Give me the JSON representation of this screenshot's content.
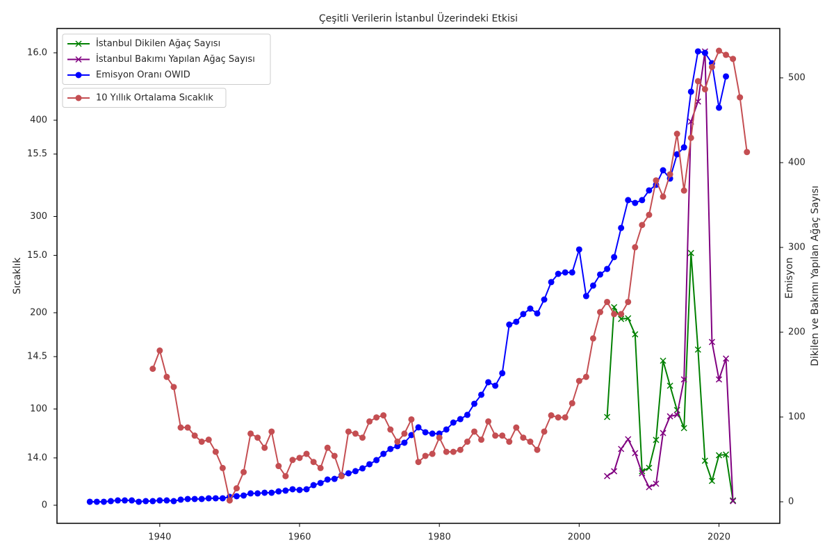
{
  "chart_data": {
    "type": "line",
    "title": "Çeşitli Verilerin İstanbul Üzerindeki Etkisi",
    "ylabel": "Sıcaklık",
    "y2label": "Emisyon",
    "y3label": "Dikilen ve Bakımı Yapılan Ağaç Sayısı",
    "xlim": [
      1925.3,
      2028.7
    ],
    "xticks": [
      1940,
      1960,
      1980,
      2000,
      2020
    ],
    "ylim": [
      13.677,
      16.12
    ],
    "yticks": [
      {
        "value": 14.0,
        "label": "14.0"
      },
      14.5,
      {
        "value": 15.0,
        "label": "15.0"
      },
      15.5,
      {
        "value": 16.0,
        "label": "16.0"
      }
    ],
    "y2lim": [
      -18.8,
      495.3
    ],
    "y2ticks": [
      0,
      100,
      200,
      300,
      400
    ],
    "y3lim": [
      -25.4,
      558.2
    ],
    "y3ticks": [
      0,
      100,
      200,
      300,
      400,
      500
    ],
    "grid": false,
    "series": [
      {
        "name": "İstanbul Dikilen Ağaç Sayısı",
        "color": "#008000",
        "marker": "x",
        "axis": "y3",
        "x": [
          2004,
          2005,
          2006,
          2007,
          2008,
          2009,
          2010,
          2011,
          2012,
          2013,
          2014,
          2015,
          2016,
          2017,
          2018,
          2019,
          2020,
          2021,
          2022
        ],
        "values": [
          100,
          229.5,
          215.6,
          216.4,
          197.5,
          36,
          40,
          73,
          166.4,
          136.9,
          108.2,
          86.9,
          293.4,
          179.5,
          48.4,
          24.6,
          54.9,
          55.7,
          1.6
        ]
      },
      {
        "name": "İstanbul Bakımı Yapılan Ağaç Sayısı",
        "color": "#800080",
        "marker": "x",
        "axis": "y3",
        "x": [
          2004,
          2005,
          2006,
          2007,
          2008,
          2009,
          2010,
          2011,
          2012,
          2013,
          2014,
          2015,
          2016,
          2017,
          2018,
          2019,
          2020,
          2021,
          2022
        ],
        "values": [
          30.3,
          36,
          62.3,
          73.8,
          57.4,
          33.6,
          17.2,
          21.3,
          81.1,
          100.8,
          102.5,
          144.3,
          448.4,
          472.1,
          531.1,
          188.5,
          144.3,
          168.9,
          0.8
        ]
      },
      {
        "name": "Emisyon Oranı OWID",
        "color": "#0000ff",
        "marker": "o",
        "axis": "y2",
        "x": [
          1930,
          1931,
          1932,
          1933,
          1934,
          1935,
          1936,
          1937,
          1938,
          1939,
          1940,
          1941,
          1942,
          1943,
          1944,
          1945,
          1946,
          1947,
          1948,
          1949,
          1950,
          1951,
          1952,
          1953,
          1954,
          1955,
          1956,
          1957,
          1958,
          1959,
          1960,
          1961,
          1962,
          1963,
          1964,
          1965,
          1966,
          1967,
          1968,
          1969,
          1970,
          1971,
          1972,
          1973,
          1974,
          1975,
          1976,
          1977,
          1978,
          1979,
          1980,
          1981,
          1982,
          1983,
          1984,
          1985,
          1986,
          1987,
          1988,
          1989,
          1990,
          1991,
          1992,
          1993,
          1994,
          1995,
          1996,
          1997,
          1998,
          1999,
          2000,
          2001,
          2002,
          2003,
          2004,
          2005,
          2006,
          2007,
          2008,
          2009,
          2010,
          2011,
          2012,
          2013,
          2014,
          2015,
          2016,
          2017,
          2018,
          2019,
          2020,
          2021
        ],
        "values": [
          3.6,
          3.6,
          3.6,
          4.3,
          5.0,
          5.0,
          5.0,
          3.6,
          4.3,
          4.3,
          5.0,
          5.0,
          4.3,
          5.8,
          6.5,
          6.5,
          6.5,
          7.2,
          7.2,
          7.2,
          8.7,
          9.4,
          10.1,
          12.3,
          12.3,
          13.0,
          13.0,
          14.4,
          15.2,
          16.6,
          15.9,
          16.6,
          20.9,
          23.1,
          26.7,
          27.4,
          31.0,
          33.2,
          35.4,
          38.3,
          42.6,
          46.9,
          53.4,
          58.5,
          61.4,
          65.0,
          72.9,
          80.9,
          75.8,
          74.4,
          74.4,
          78.7,
          85.9,
          89.5,
          93.9,
          105.4,
          114.8,
          127.8,
          124.2,
          137.2,
          187.7,
          190.6,
          198.6,
          204.3,
          199.3,
          213.7,
          231.8,
          240.4,
          241.9,
          241.9,
          265.7,
          217.3,
          228.2,
          239.7,
          245.5,
          257.8,
          288.1,
          317.0,
          314.1,
          317.0,
          327.1,
          332.9,
          348.0,
          339.4,
          364.6,
          371.8,
          429.6,
          471.5,
          470.0,
          459.2,
          413.0,
          445.5
        ]
      },
      {
        "name": "10 Yıllık Ortalama Sıcaklık",
        "color": "#c44e52",
        "marker": "o",
        "axis": "y",
        "x": [
          1939,
          1940,
          1941,
          1942,
          1943,
          1944,
          1945,
          1946,
          1947,
          1948,
          1949,
          1950,
          1951,
          1952,
          1953,
          1954,
          1955,
          1956,
          1957,
          1958,
          1959,
          1960,
          1961,
          1962,
          1963,
          1964,
          1965,
          1966,
          1967,
          1968,
          1969,
          1970,
          1971,
          1972,
          1973,
          1974,
          1975,
          1976,
          1977,
          1978,
          1979,
          1980,
          1981,
          1982,
          1983,
          1984,
          1985,
          1986,
          1987,
          1988,
          1989,
          1990,
          1991,
          1992,
          1993,
          1994,
          1995,
          1996,
          1997,
          1998,
          1999,
          2000,
          2001,
          2002,
          2003,
          2004,
          2005,
          2006,
          2007,
          2008,
          2009,
          2010,
          2011,
          2012,
          2013,
          2014,
          2015,
          2016,
          2017,
          2018,
          2019,
          2020,
          2021,
          2022,
          2023,
          2024
        ],
        "values": [
          14.44,
          14.53,
          14.4,
          14.35,
          14.15,
          14.15,
          14.11,
          14.08,
          14.09,
          14.03,
          13.95,
          13.79,
          13.85,
          13.93,
          14.12,
          14.1,
          14.05,
          14.13,
          13.96,
          13.91,
          13.99,
          14.0,
          14.02,
          13.98,
          13.95,
          14.05,
          14.01,
          13.91,
          14.13,
          14.12,
          14.1,
          14.18,
          14.2,
          14.21,
          14.14,
          14.08,
          14.12,
          14.19,
          13.98,
          14.01,
          14.02,
          14.1,
          14.03,
          14.03,
          14.04,
          14.08,
          14.13,
          14.09,
          14.18,
          14.11,
          14.11,
          14.08,
          14.15,
          14.1,
          14.08,
          14.04,
          14.13,
          14.21,
          14.2,
          14.2,
          14.27,
          14.38,
          14.4,
          14.59,
          14.72,
          14.77,
          14.71,
          14.71,
          14.77,
          15.04,
          15.15,
          15.2,
          15.37,
          15.29,
          15.4,
          15.6,
          15.32,
          15.58,
          15.86,
          15.82,
          15.93,
          16.01,
          15.99,
          15.97,
          15.78,
          15.51
        ]
      }
    ]
  }
}
